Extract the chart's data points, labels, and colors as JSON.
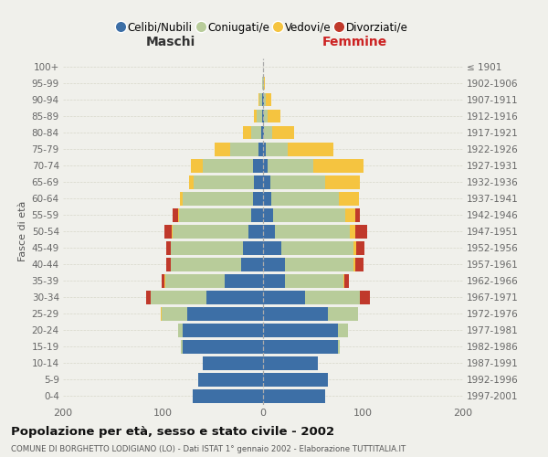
{
  "age_groups": [
    "0-4",
    "5-9",
    "10-14",
    "15-19",
    "20-24",
    "25-29",
    "30-34",
    "35-39",
    "40-44",
    "45-49",
    "50-54",
    "55-59",
    "60-64",
    "65-69",
    "70-74",
    "75-79",
    "80-84",
    "85-89",
    "90-94",
    "95-99",
    "100+"
  ],
  "birth_years": [
    "1997-2001",
    "1992-1996",
    "1987-1991",
    "1982-1986",
    "1977-1981",
    "1972-1976",
    "1967-1971",
    "1962-1966",
    "1957-1961",
    "1952-1956",
    "1947-1951",
    "1942-1946",
    "1937-1941",
    "1932-1936",
    "1927-1931",
    "1922-1926",
    "1917-1921",
    "1912-1916",
    "1907-1911",
    "1902-1906",
    "≤ 1901"
  ],
  "males_celibi": [
    70,
    65,
    60,
    80,
    80,
    76,
    57,
    38,
    22,
    20,
    15,
    12,
    10,
    9,
    10,
    5,
    2,
    1,
    1,
    0,
    0
  ],
  "males_coniugati": [
    0,
    0,
    0,
    2,
    5,
    25,
    55,
    60,
    70,
    72,
    75,
    72,
    70,
    60,
    50,
    28,
    10,
    5,
    3,
    1,
    0
  ],
  "males_vedovi": [
    0,
    0,
    0,
    0,
    0,
    1,
    0,
    1,
    0,
    0,
    1,
    1,
    3,
    5,
    12,
    15,
    8,
    3,
    1,
    0,
    0
  ],
  "males_divorziati": [
    0,
    0,
    0,
    0,
    0,
    0,
    5,
    2,
    5,
    5,
    8,
    5,
    0,
    0,
    0,
    0,
    0,
    0,
    0,
    0,
    0
  ],
  "females_nubili": [
    62,
    65,
    55,
    75,
    75,
    65,
    42,
    22,
    22,
    18,
    12,
    10,
    8,
    7,
    5,
    3,
    1,
    1,
    1,
    0,
    0
  ],
  "females_coniugate": [
    0,
    0,
    0,
    2,
    10,
    30,
    55,
    58,
    68,
    72,
    75,
    72,
    68,
    55,
    45,
    22,
    8,
    4,
    2,
    1,
    0
  ],
  "females_vedove": [
    0,
    0,
    0,
    0,
    0,
    0,
    0,
    1,
    2,
    3,
    5,
    10,
    20,
    35,
    50,
    45,
    22,
    12,
    5,
    1,
    0
  ],
  "females_divorziate": [
    0,
    0,
    0,
    0,
    0,
    0,
    10,
    5,
    8,
    8,
    12,
    5,
    0,
    0,
    0,
    0,
    0,
    0,
    0,
    0,
    0
  ],
  "col_celibi": "#3d6fa6",
  "col_coniugati": "#b8cc9a",
  "col_vedovi": "#f5c440",
  "col_divorziati": "#c0392b",
  "bg_color": "#f0f0eb",
  "xlim": 200,
  "title": "Popolazione per età, sesso e stato civile - 2002",
  "subtitle": "COMUNE DI BORGHETTO LODIGIANO (LO) - Dati ISTAT 1° gennaio 2002 - Elaborazione TUTTITALIA.IT",
  "legend_labels": [
    "Celibi/Nubili",
    "Coniugati/e",
    "Vedovi/e",
    "Divorziati/e"
  ],
  "label_maschi": "Maschi",
  "label_femmine": "Femmine",
  "label_fasce": "Fasce di età"
}
